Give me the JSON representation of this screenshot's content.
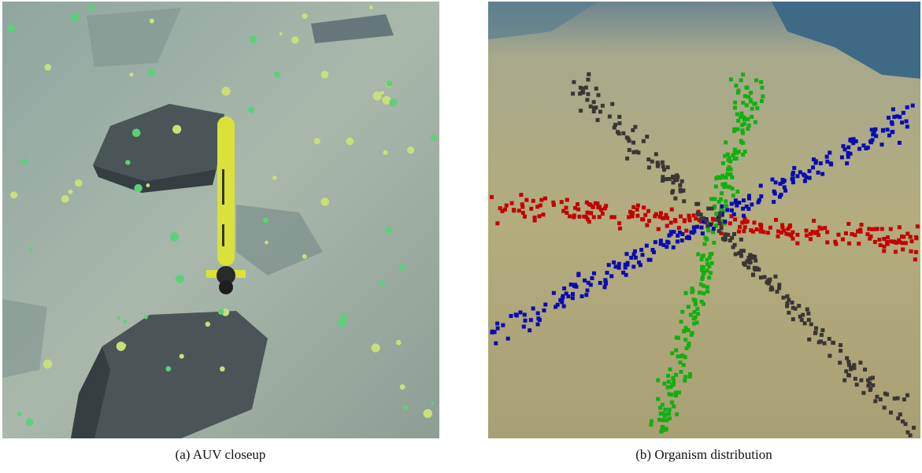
{
  "figure": {
    "panels": [
      {
        "caption": "(a) AUV closeup"
      },
      {
        "caption": "(b) Organism distribution"
      }
    ]
  }
}
